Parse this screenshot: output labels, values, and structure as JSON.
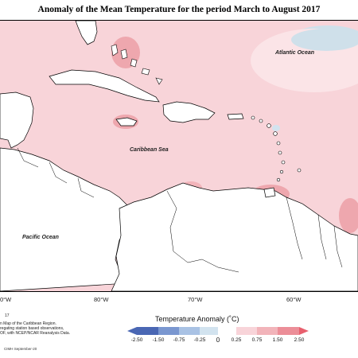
{
  "title": "Anomaly of the Mean Temperature for the period March to August 2017",
  "map": {
    "labels": {
      "atlantic": "Atlantic Ocean",
      "caribbean": "Caribbean Sea",
      "pacific": "Pacific Ocean"
    },
    "longitude_ticks": [
      "0°W",
      "80°W",
      "70°W",
      "60°W"
    ],
    "colors": {
      "background_anomaly": "#f8d4d9",
      "land": "#ffffff",
      "cool_patch": "#cfe0ea",
      "warm_patch": "#eea7ae",
      "strong_warm": "#e98c95"
    }
  },
  "footnote": {
    "number": "17",
    "lines": [
      "n Map of the Caribbean Region.",
      "regating station based observations,",
      "OF, with NCEP/NCAR Reanalysis Data."
    ]
  },
  "legend": {
    "title": "Temperature Anomaly (˚C)",
    "ticks": [
      "-2.50",
      "-1.50",
      "-0.75",
      "-0.25",
      "0",
      "0.25",
      "0.75",
      "1.50",
      "2.50"
    ],
    "colors": [
      "#4a67b4",
      "#7a97d0",
      "#a9c2e4",
      "#d2e3ef",
      "#ffffff",
      "#f8d4d9",
      "#f2b4ba",
      "#ec8e98",
      "#e8606e"
    ]
  },
  "credit": "CIMH September-20"
}
